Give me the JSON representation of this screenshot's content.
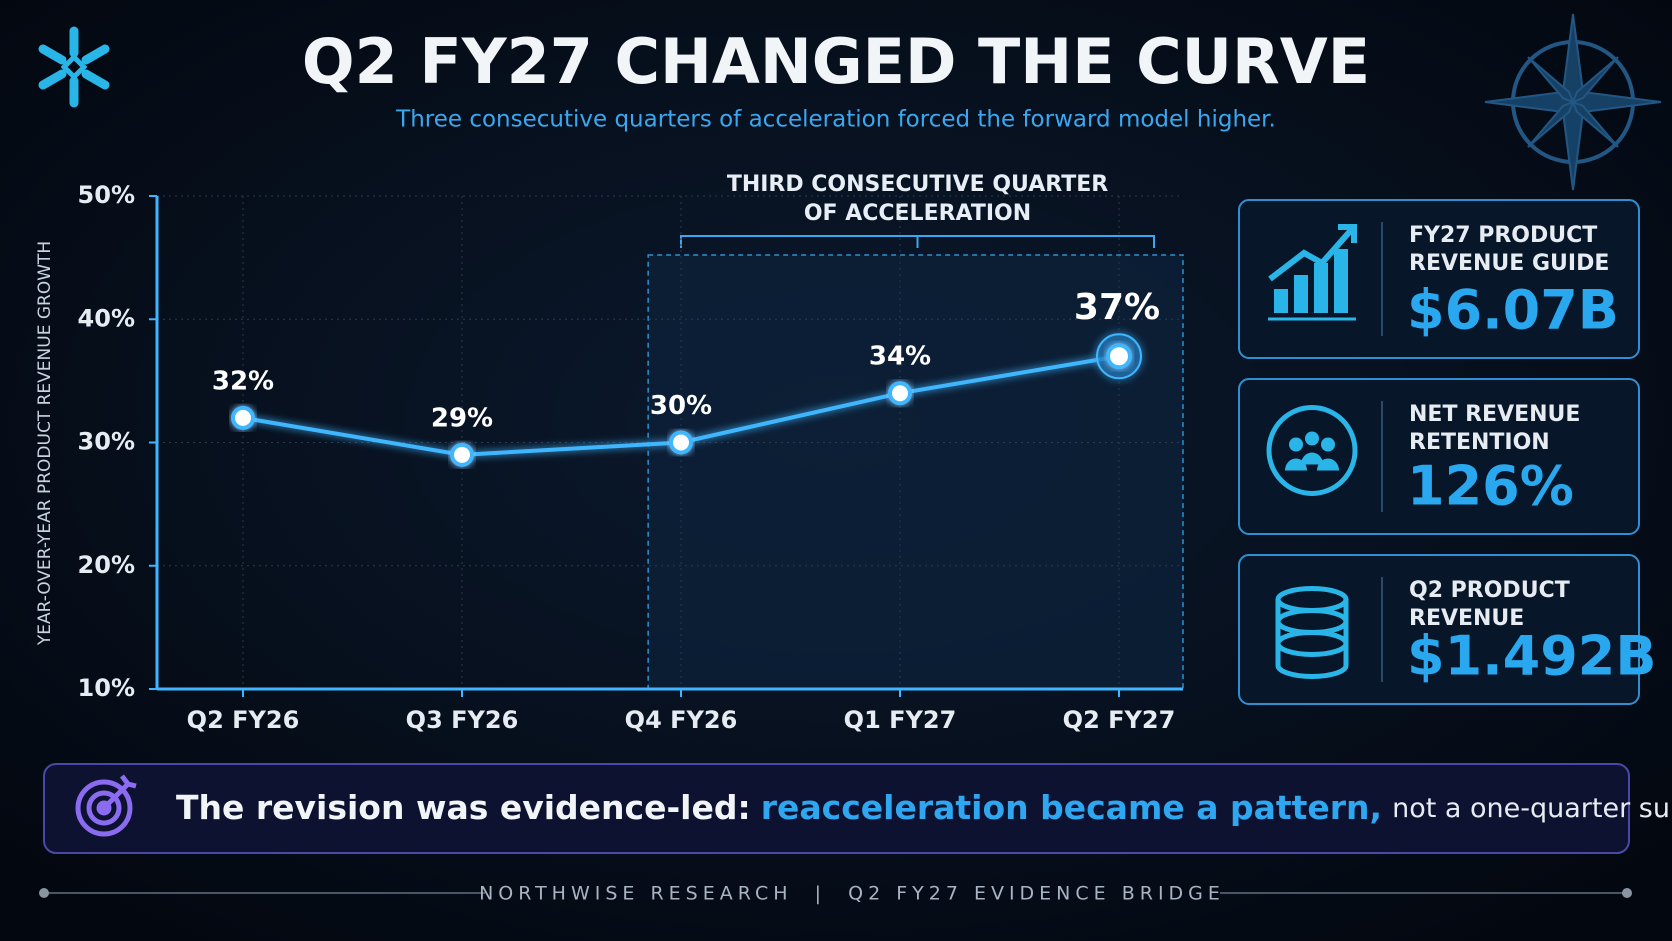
{
  "chart_data": {
    "type": "line",
    "title": "Q2 FY27 CHANGED THE CURVE",
    "subtitle": "Three consecutive quarters of acceleration forced the forward model higher.",
    "y_label": "YEAR-OVER-YEAR PRODUCT REVENUE GROWTH",
    "annotation": [
      "THIRD CONSECUTIVE QUARTER",
      "OF ACCELERATION"
    ],
    "categories": [
      "Q2 FY26",
      "Q3 FY26",
      "Q4 FY26",
      "Q1 FY27",
      "Q2 FY27"
    ],
    "values": [
      32,
      29,
      30,
      34,
      37
    ],
    "value_labels": [
      "32%",
      "29%",
      "30%",
      "34%",
      "37%"
    ],
    "color": "#3fb6ff",
    "ylim": [
      10,
      50
    ],
    "yticks": [
      {
        "value": 10,
        "label": "10%"
      },
      {
        "value": 20,
        "label": "20%"
      },
      {
        "value": 30,
        "label": "30%"
      },
      {
        "value": 40,
        "label": "40%"
      },
      {
        "value": 50,
        "label": "50%"
      }
    ],
    "grid": true
  },
  "kpis": [
    {
      "label": [
        "FY27 PRODUCT",
        "REVENUE GUIDE"
      ],
      "value": "$6.07B"
    },
    {
      "label": [
        "NET REVENUE",
        "RETENTION"
      ],
      "value": "126%"
    },
    {
      "label": [
        "Q2 PRODUCT",
        "REVENUE"
      ],
      "value": "$1.492B"
    }
  ],
  "callout": {
    "lead": "The revision was evidence-led:",
    "highlight": "reacceleration became a pattern,",
    "tail": "not a one-quarter surprise."
  },
  "footer": "NORTHWISE RESEARCH  |  Q2 FY27 EVIDENCE BRIDGE"
}
